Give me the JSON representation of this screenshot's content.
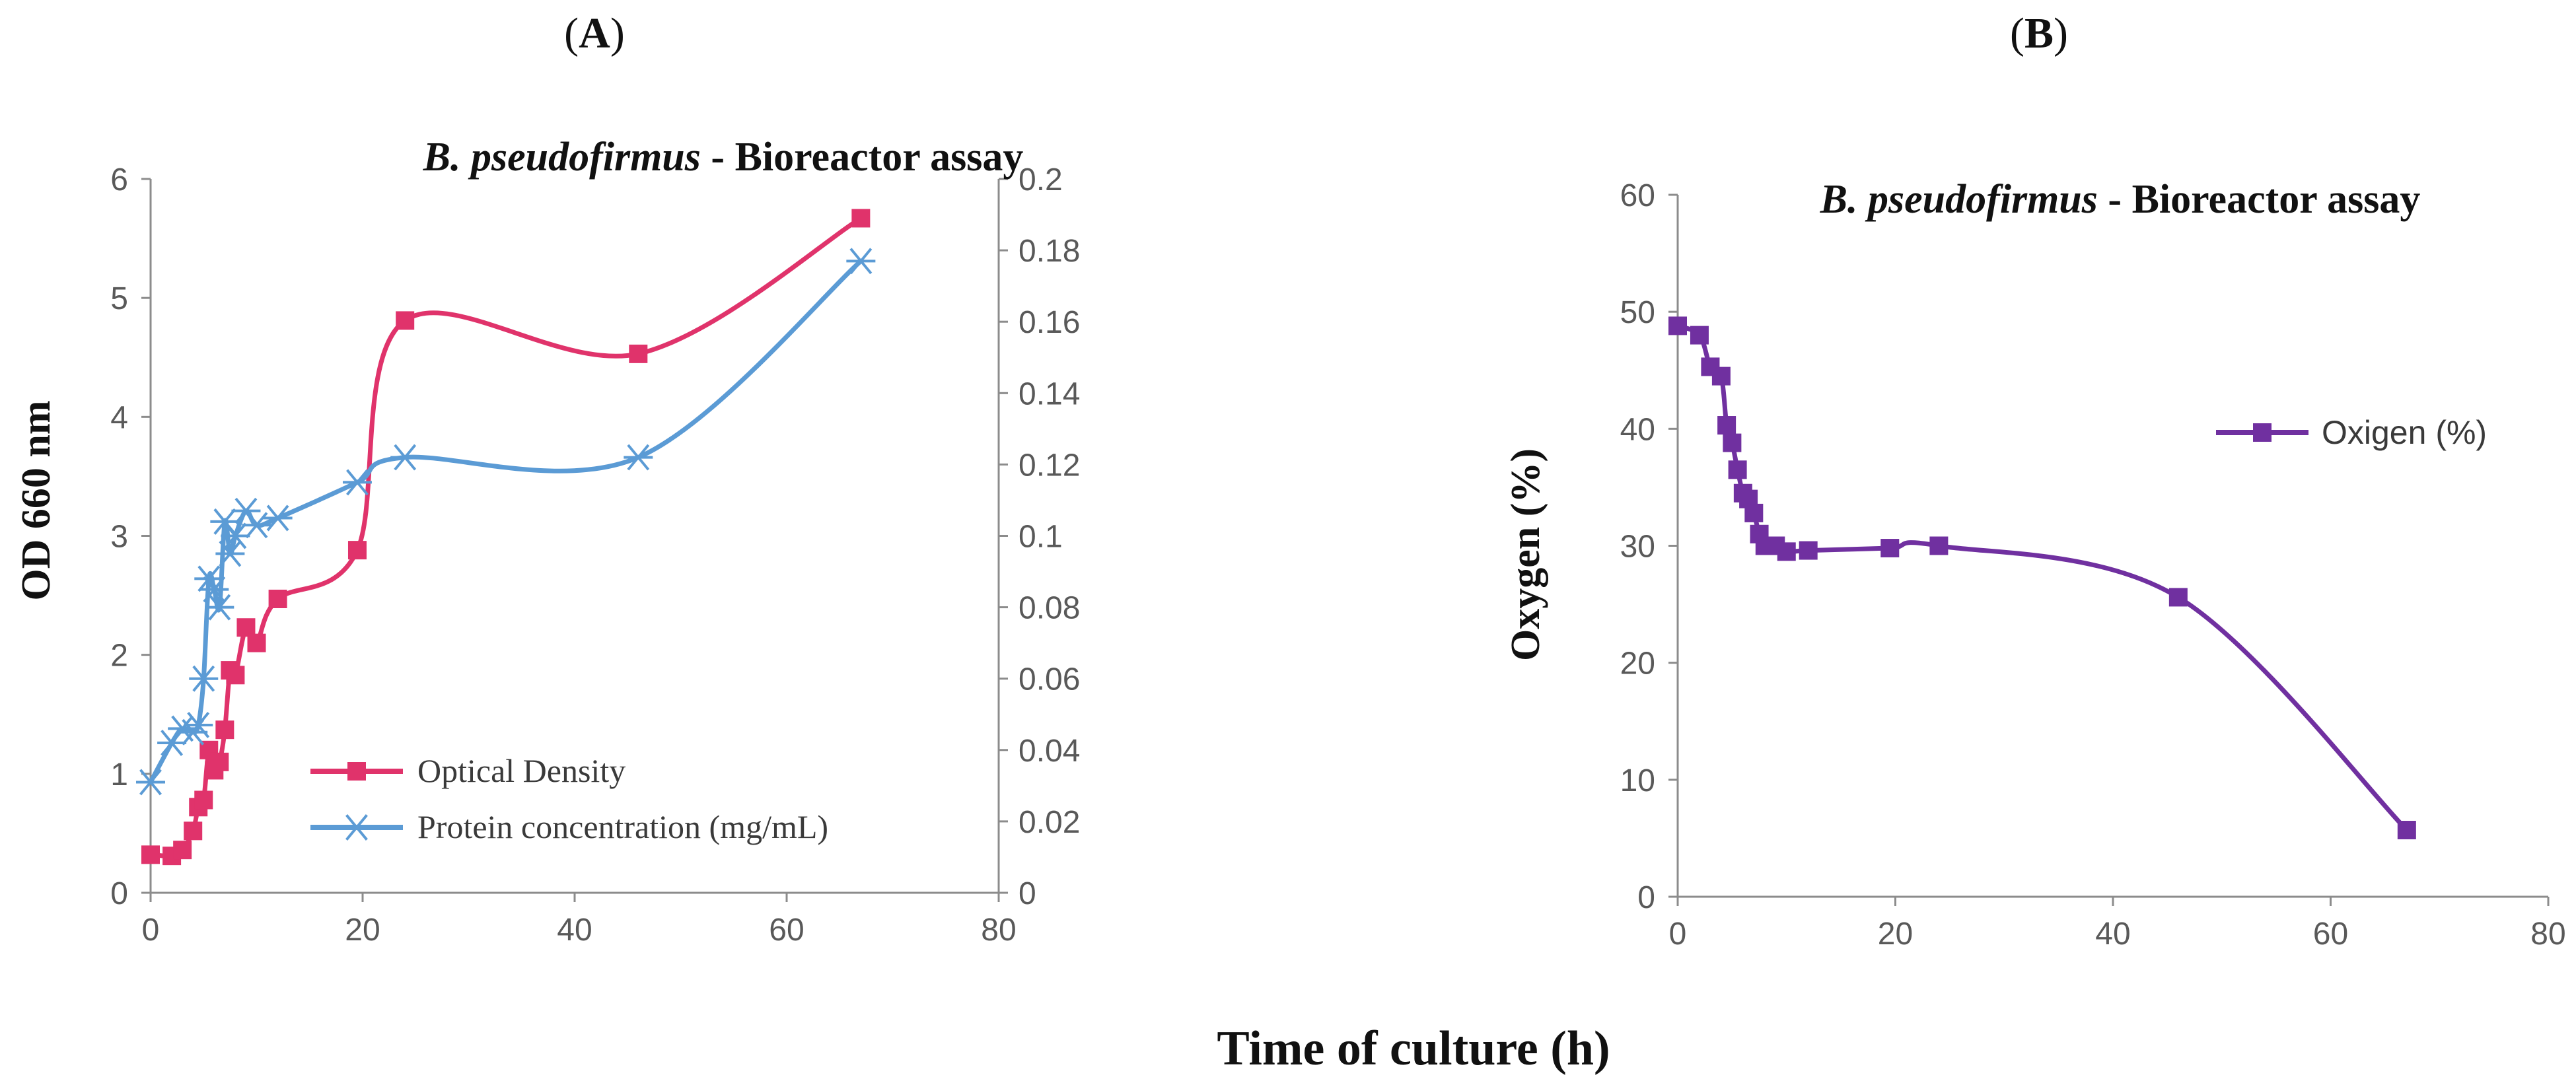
{
  "panel_labels": {
    "a": "A",
    "b": "B"
  },
  "shared_xlabel": "Time of culture (h)",
  "colors": {
    "od": "#e0336b",
    "protein": "#5b9bd5",
    "oxygen": "#7030a0",
    "axis": "#8c8c8c"
  },
  "chart_data": [
    {
      "type": "line",
      "title_italic": "B. pseudofirmus",
      "title_rest": " - Bioreactor assay",
      "xlabel": "",
      "ylabel": "OD 660 nm",
      "xlim": [
        0,
        80
      ],
      "ylim": [
        0,
        6
      ],
      "y2lim": [
        0,
        0.2
      ],
      "xticks": [
        "0",
        "20",
        "40",
        "60",
        "80"
      ],
      "yticks": [
        "0",
        "1",
        "2",
        "3",
        "4",
        "5",
        "6"
      ],
      "y2ticks": [
        "0",
        "0.02",
        "0.04",
        "0.06",
        "0.08",
        "0.1",
        "0.12",
        "0.14",
        "0.16",
        "0.18",
        "0.2"
      ],
      "legend": "bottom-right",
      "series": [
        {
          "name": "Optical Density",
          "axis": "left",
          "marker": "square",
          "color_key": "od",
          "x": [
            0,
            2,
            3,
            4,
            4.5,
            5,
            5.5,
            6,
            6.5,
            7,
            7.5,
            8,
            9,
            10,
            12,
            19.5,
            24,
            46,
            67
          ],
          "y": [
            0.32,
            0.31,
            0.36,
            0.52,
            0.72,
            0.78,
            1.2,
            1.03,
            1.1,
            1.37,
            1.87,
            1.83,
            2.23,
            2.1,
            2.47,
            2.88,
            4.81,
            4.53,
            5.67
          ]
        },
        {
          "name": "Protein concentration (mg/mL)",
          "axis": "right",
          "marker": "asterisk",
          "color_key": "protein",
          "x": [
            0,
            2,
            3,
            4,
            4.5,
            5,
            5.5,
            6,
            6.5,
            7,
            7.5,
            8,
            9,
            10,
            12,
            19.5,
            24,
            46,
            67
          ],
          "y": [
            0.031,
            0.042,
            0.046,
            0.045,
            0.047,
            0.06,
            0.088,
            0.085,
            0.08,
            0.104,
            0.095,
            0.1,
            0.107,
            0.103,
            0.105,
            0.115,
            0.122,
            0.122,
            0.177
          ]
        }
      ]
    },
    {
      "type": "line",
      "title_italic": "B. pseudofirmus",
      "title_rest": " - Bioreactor assay",
      "xlabel": "",
      "ylabel": "Oxygen (%)",
      "xlim": [
        0,
        80
      ],
      "ylim": [
        0,
        60
      ],
      "xticks": [
        "0",
        "20",
        "40",
        "60",
        "80"
      ],
      "yticks": [
        "0",
        "10",
        "20",
        "30",
        "40",
        "50",
        "60"
      ],
      "legend": "right",
      "series": [
        {
          "name": "Oxigen (%)",
          "axis": "left",
          "marker": "square",
          "color_key": "oxygen",
          "x": [
            0,
            2,
            3,
            4,
            4.5,
            5,
            5.5,
            6,
            6.5,
            7,
            7.5,
            8,
            9,
            10,
            12,
            19.5,
            24,
            46,
            67
          ],
          "y": [
            48.8,
            48.0,
            45.3,
            44.5,
            40.3,
            38.8,
            36.5,
            34.5,
            34.0,
            32.8,
            31.0,
            30.0,
            30.0,
            29.5,
            29.6,
            29.8,
            30.0,
            25.6,
            5.7
          ]
        }
      ]
    }
  ]
}
